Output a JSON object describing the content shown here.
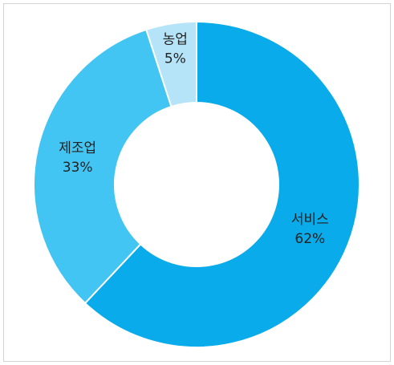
{
  "chart_data": {
    "type": "donut",
    "categories": [
      "서비스",
      "제조업",
      "농업"
    ],
    "values": [
      62,
      33,
      5
    ],
    "value_labels": [
      "62%",
      "33%",
      "5%"
    ],
    "colors": [
      "#0aabea",
      "#42c5f2",
      "#b5e4f9"
    ]
  }
}
